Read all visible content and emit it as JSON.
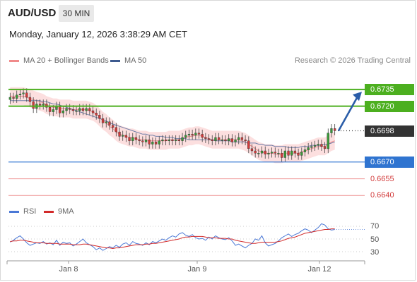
{
  "header": {
    "pair": "AUD/USD",
    "timeframe": "30 MIN",
    "datetime": "Monday, January 12, 2026 3:38:29 AM CET"
  },
  "legend": {
    "ma20_label": "MA 20 + Bollinger Bands",
    "ma50_label": "MA 50",
    "credit": "Research © 2026 Trading Central",
    "rsi_label": "RSI",
    "rsi_ma_label": "9MA"
  },
  "colors": {
    "up_candle": "#3a9a3a",
    "down_candle": "#d23b3b",
    "ma20": "#f08a8a",
    "bollinger_fill": "#fbd4d4",
    "ma50": "#6f7fa8",
    "resistance": "#4caf1f",
    "pivot": "#2f74d0",
    "support": "#f0a0a0",
    "support_text": "#d23b3b",
    "current": "#333333",
    "arrow": "#2a5da8",
    "rsi": "#4a78d6",
    "rsi_ma": "#d22a2a"
  },
  "chart_data": [
    {
      "type": "candlestick",
      "title": "AUD/USD 30 MIN",
      "x_ticks": [
        "Jan 8",
        "Jan 9",
        "Jan 12"
      ],
      "ylim": [
        0.6632,
        0.6752
      ],
      "levels": [
        {
          "value": "0.6735",
          "role": "resistance",
          "style": "box"
        },
        {
          "value": "0.6720",
          "role": "resistance",
          "style": "box"
        },
        {
          "value": "0.6698",
          "role": "current",
          "style": "box"
        },
        {
          "value": "0.6670",
          "role": "pivot",
          "style": "box"
        },
        {
          "value": "0.6655",
          "role": "support",
          "style": "plain"
        },
        {
          "value": "0.6640",
          "role": "support",
          "style": "plain"
        }
      ],
      "close_series": [
        0.6728,
        0.6727,
        0.673,
        0.6731,
        0.6732,
        0.6728,
        0.6724,
        0.6718,
        0.6722,
        0.6721,
        0.6722,
        0.6719,
        0.6715,
        0.6717,
        0.672,
        0.6714,
        0.6716,
        0.6718,
        0.6717,
        0.6716,
        0.6716,
        0.6718,
        0.6716,
        0.6718,
        0.6716,
        0.6714,
        0.6712,
        0.6709,
        0.6705,
        0.6706,
        0.6703,
        0.6701,
        0.6697,
        0.6693,
        0.6694,
        0.6692,
        0.6689,
        0.6692,
        0.669,
        0.6689,
        0.6688,
        0.669,
        0.6686,
        0.6688,
        0.6686,
        0.6689,
        0.669,
        0.6689,
        0.669,
        0.6689,
        0.669,
        0.6689,
        0.6692,
        0.6694,
        0.6695,
        0.6694,
        0.6696,
        0.6695,
        0.6692,
        0.6691,
        0.669,
        0.6689,
        0.6692,
        0.669,
        0.669,
        0.6689,
        0.6691,
        0.6688,
        0.669,
        0.6692,
        0.669,
        0.6689,
        0.6682,
        0.668,
        0.6678,
        0.6678,
        0.668,
        0.6677,
        0.6678,
        0.6679,
        0.6678,
        0.6678,
        0.6674,
        0.668,
        0.6676,
        0.668,
        0.6678,
        0.6676,
        0.6679,
        0.6681,
        0.6683,
        0.6684,
        0.6685,
        0.6686,
        0.6684,
        0.6682,
        0.6696,
        0.67,
        0.6698
      ],
      "ma20_series": [
        0.6729,
        0.6729,
        0.6729,
        0.6729,
        0.6729,
        0.6728,
        0.6727,
        0.6726,
        0.6725,
        0.6724,
        0.6723,
        0.6721,
        0.672,
        0.6719,
        0.6719,
        0.6718,
        0.6718,
        0.6718,
        0.6718,
        0.6717,
        0.6717,
        0.6717,
        0.6717,
        0.6717,
        0.6716,
        0.6715,
        0.6713,
        0.671,
        0.6707,
        0.6705,
        0.6702,
        0.67,
        0.6697,
        0.6695,
        0.6694,
        0.6693,
        0.6692,
        0.6692,
        0.6691,
        0.669,
        0.669,
        0.669,
        0.6689,
        0.6689,
        0.6689,
        0.6689,
        0.6689,
        0.6689,
        0.669,
        0.669,
        0.669,
        0.669,
        0.6691,
        0.6692,
        0.6693,
        0.6693,
        0.6694,
        0.6694,
        0.6693,
        0.6692,
        0.6691,
        0.669,
        0.669,
        0.669,
        0.669,
        0.669,
        0.669,
        0.669,
        0.669,
        0.669,
        0.6689,
        0.6688,
        0.6686,
        0.6684,
        0.6682,
        0.668,
        0.6679,
        0.6678,
        0.6678,
        0.6678,
        0.6677,
        0.6677,
        0.6677,
        0.6678,
        0.6678,
        0.6678,
        0.6678,
        0.6678,
        0.6679,
        0.668,
        0.6681,
        0.6682,
        0.6683,
        0.6684,
        0.6684,
        0.6684,
        0.6686,
        0.6688,
        0.6689
      ],
      "ma50_series": [
        0.6725,
        0.6725,
        0.6725,
        0.6725,
        0.6725,
        0.6725,
        0.6725,
        0.6725,
        0.6725,
        0.6725,
        0.6724,
        0.6724,
        0.6723,
        0.6722,
        0.6722,
        0.6721,
        0.672,
        0.6719,
        0.6718,
        0.6717,
        0.6716,
        0.6715,
        0.6714,
        0.6713,
        0.6712,
        0.6711,
        0.671,
        0.6709,
        0.6708,
        0.6707,
        0.6705,
        0.6704,
        0.6703,
        0.6702,
        0.6701,
        0.67,
        0.6699,
        0.6698,
        0.6697,
        0.6696,
        0.6695,
        0.6695,
        0.6694,
        0.6694,
        0.6693,
        0.6693,
        0.6693,
        0.6692,
        0.6692,
        0.6692,
        0.6691,
        0.6691,
        0.6691,
        0.6691,
        0.669,
        0.669,
        0.669,
        0.669,
        0.669,
        0.669,
        0.669,
        0.669,
        0.6689,
        0.6689,
        0.6689,
        0.6689,
        0.6689,
        0.6688,
        0.6688,
        0.6688,
        0.6688,
        0.6688,
        0.6687,
        0.6687,
        0.6687,
        0.6686,
        0.6686,
        0.6685,
        0.6685,
        0.6685,
        0.6684,
        0.6684,
        0.6684,
        0.6684,
        0.6683,
        0.6683,
        0.6683,
        0.6683,
        0.6684,
        0.6684,
        0.6684,
        0.6685,
        0.6685,
        0.6685,
        0.6685,
        0.6686,
        0.6686,
        0.6687,
        0.6688
      ],
      "bollinger_width": 0.0008
    },
    {
      "type": "line",
      "title": "RSI",
      "y_ticks": [
        "70",
        "50",
        "30"
      ],
      "ylim": [
        20,
        80
      ],
      "rsi_series": [
        45,
        48,
        52,
        55,
        50,
        44,
        40,
        42,
        44,
        43,
        46,
        42,
        44,
        41,
        48,
        40,
        45,
        43,
        44,
        39,
        42,
        46,
        50,
        44,
        41,
        38,
        33,
        36,
        32,
        35,
        38,
        36,
        40,
        37,
        42,
        44,
        40,
        46,
        43,
        42,
        40,
        44,
        41,
        46,
        44,
        47,
        50,
        48,
        52,
        55,
        53,
        58,
        60,
        56,
        54,
        57,
        52,
        50,
        51,
        48,
        53,
        50,
        55,
        52,
        50,
        49,
        52,
        47,
        40,
        42,
        39,
        36,
        40,
        43,
        50,
        48,
        55,
        44,
        39,
        41,
        43,
        47,
        52,
        55,
        58,
        54,
        57,
        59,
        63,
        66,
        64,
        60,
        64,
        68,
        74,
        72,
        66,
        64,
        65
      ],
      "rsi_ma_series": [
        46,
        47,
        47,
        48,
        48,
        47,
        46,
        45,
        44,
        44,
        44,
        43,
        43,
        43,
        43,
        42,
        42,
        42,
        42,
        41,
        41,
        41,
        42,
        42,
        41,
        40,
        39,
        38,
        37,
        36,
        36,
        35,
        36,
        36,
        37,
        38,
        39,
        40,
        41,
        41,
        41,
        42,
        42,
        43,
        43,
        44,
        45,
        46,
        47,
        48,
        49,
        50,
        52,
        53,
        53,
        54,
        54,
        54,
        54,
        53,
        52,
        52,
        52,
        51,
        51,
        51,
        50,
        50,
        48,
        47,
        46,
        45,
        44,
        43,
        43,
        44,
        45,
        45,
        45,
        45,
        45,
        46,
        47,
        49,
        51,
        52,
        53,
        55,
        57,
        59,
        60,
        61,
        62,
        63,
        64,
        65,
        65,
        66,
        66
      ]
    }
  ]
}
